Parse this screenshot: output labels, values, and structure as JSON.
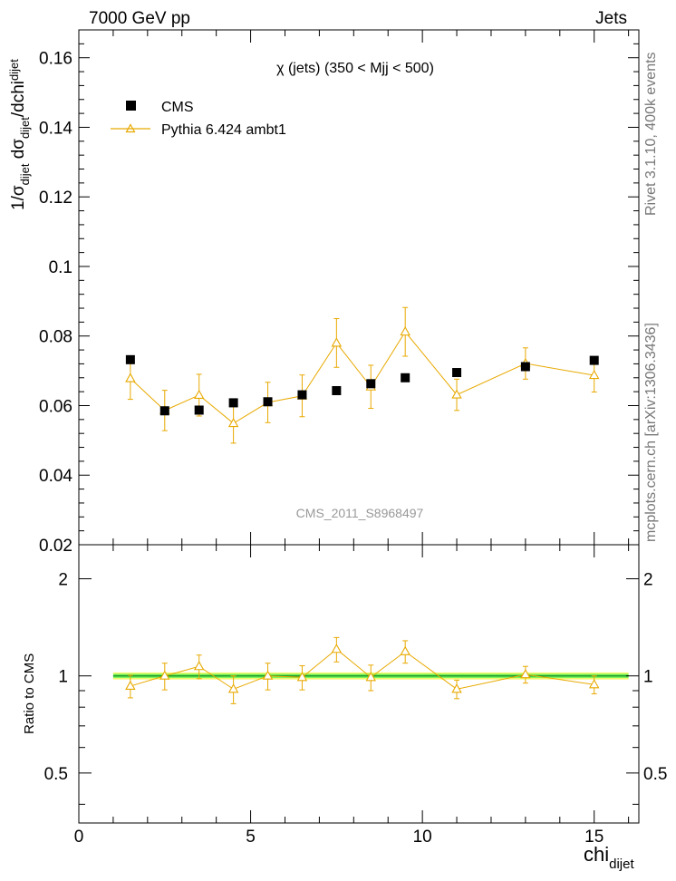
{
  "header": {
    "left": "7000 GeV pp",
    "right": "Jets"
  },
  "side_labels": {
    "rivet": "Rivet 3.1.10,  400k events",
    "mcplots": "mcplots.cern.ch [arXiv:1306.3436]"
  },
  "chart_data": [
    {
      "type": "scatter",
      "title": "χ (jets) (350 < Mjj <  500)",
      "watermark": "CMS_2011_S8968497",
      "ylabel": {
        "base": "1/σ",
        "sub1": "dijet",
        "mid": " dσ",
        "sub2": "dijet",
        "tail": "/dchi",
        "sub3": "dijet"
      },
      "xlim": [
        0,
        16.3
      ],
      "ylim": [
        0.02,
        0.168
      ],
      "yticks": [
        0.02,
        0.04,
        0.06,
        0.08,
        0.1,
        0.12,
        0.14,
        0.16
      ],
      "ytick_labels": [
        "0.02",
        "0.04",
        "0.06",
        "0.08",
        "0.1",
        "0.12",
        "0.14",
        "0.16"
      ],
      "legend": {
        "placement": "top-left"
      },
      "series": [
        {
          "name": "CMS",
          "color": "#000000",
          "marker": "square",
          "x": [
            1.5,
            2.5,
            3.5,
            4.5,
            5.5,
            6.5,
            7.5,
            8.5,
            9.5,
            11,
            13,
            15
          ],
          "y": [
            0.0732,
            0.0585,
            0.0587,
            0.0608,
            0.0611,
            0.0631,
            0.0643,
            0.0663,
            0.068,
            0.0695,
            0.0712,
            0.073
          ],
          "yerr": [
            0.0005,
            0.0005,
            0.0005,
            0.0005,
            0.0005,
            0.0005,
            0.0005,
            0.0005,
            0.0005,
            0.0005,
            0.0005,
            0.0005
          ]
        },
        {
          "name": "Pythia 6.424 ambt1",
          "color": "#e8a900",
          "marker": "open-triangle",
          "x": [
            1.5,
            2.5,
            3.5,
            4.5,
            5.5,
            6.5,
            7.5,
            8.5,
            9.5,
            11,
            13,
            15
          ],
          "y": [
            0.0678,
            0.0586,
            0.063,
            0.0549,
            0.0609,
            0.0628,
            0.078,
            0.0654,
            0.0812,
            0.0631,
            0.0721,
            0.0687
          ],
          "yerr": [
            0.006,
            0.0058,
            0.006,
            0.0057,
            0.0058,
            0.006,
            0.007,
            0.0062,
            0.007,
            0.0045,
            0.0045,
            0.0048
          ]
        }
      ]
    },
    {
      "type": "scatter",
      "ylabel": "Ratio to CMS",
      "xlabel": {
        "base": "chi",
        "sub": "dijet"
      },
      "xlim": [
        0,
        16.3
      ],
      "ylim": [
        0.35,
        2.55
      ],
      "xticks": [
        0,
        5,
        10,
        15
      ],
      "xtick_labels": [
        "0",
        "5",
        "10",
        "15"
      ],
      "yticks": [
        0.5,
        1,
        2
      ],
      "ytick_labels": [
        "0.5",
        "1",
        "2"
      ],
      "band": {
        "x": [
          1,
          16
        ],
        "inner": [
          0.985,
          1.015
        ],
        "outer": [
          0.975,
          1.025
        ],
        "inner_color": "#7df55c",
        "outer_color": "#f4f96b",
        "line_color": "#1f9e2c"
      },
      "series": [
        {
          "name": "Pythia 6.424 ambt1",
          "color": "#e8a900",
          "x": [
            1.5,
            2.5,
            3.5,
            4.5,
            5.5,
            6.5,
            7.5,
            8.5,
            9.5,
            11,
            13,
            15
          ],
          "y": [
            0.93,
            1.0,
            1.07,
            0.91,
            1.0,
            0.99,
            1.21,
            0.99,
            1.19,
            0.91,
            1.01,
            0.94
          ],
          "yerr": [
            0.075,
            0.095,
            0.09,
            0.09,
            0.095,
            0.085,
            0.105,
            0.09,
            0.095,
            0.06,
            0.06,
            0.06
          ]
        }
      ]
    }
  ]
}
